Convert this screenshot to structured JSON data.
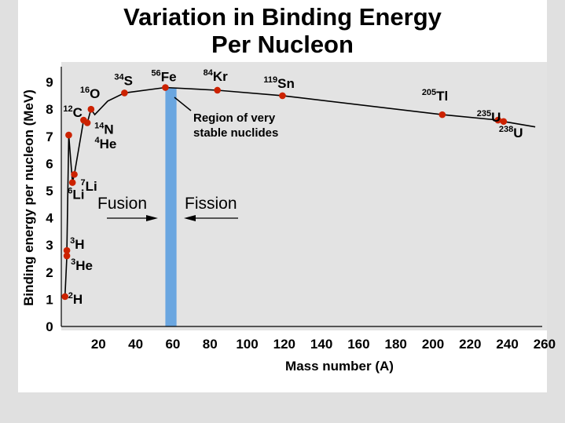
{
  "title_line1": "Variation in Binding Energy",
  "title_line2": "Per Nucleon",
  "chart_data": {
    "type": "line",
    "title": "Variation in Binding Energy Per Nucleon",
    "xlabel": "Mass number (A)",
    "ylabel": "Binding energy per nucleon (MeV)",
    "xlim": [
      0,
      260
    ],
    "ylim": [
      0,
      10
    ],
    "x_ticks": [
      "20",
      "40",
      "60",
      "80",
      "100",
      "120",
      "140",
      "160",
      "180",
      "200",
      "220",
      "240",
      "260"
    ],
    "y_ticks": [
      "0",
      "1",
      "2",
      "3",
      "4",
      "5",
      "6",
      "7",
      "8",
      "9"
    ],
    "grid": false,
    "curve": [
      {
        "x": 2,
        "y": 1.1
      },
      {
        "x": 3,
        "y": 2.6
      },
      {
        "x": 3,
        "y": 2.8
      },
      {
        "x": 4,
        "y": 7.05
      },
      {
        "x": 6,
        "y": 5.3
      },
      {
        "x": 7,
        "y": 5.6
      },
      {
        "x": 9,
        "y": 6.4
      },
      {
        "x": 12,
        "y": 7.6
      },
      {
        "x": 14,
        "y": 7.5
      },
      {
        "x": 16,
        "y": 8.0
      },
      {
        "x": 18,
        "y": 7.8
      },
      {
        "x": 25,
        "y": 8.3
      },
      {
        "x": 34,
        "y": 8.6
      },
      {
        "x": 56,
        "y": 8.8
      },
      {
        "x": 84,
        "y": 8.7
      },
      {
        "x": 119,
        "y": 8.5
      },
      {
        "x": 205,
        "y": 7.8
      },
      {
        "x": 235,
        "y": 7.6
      },
      {
        "x": 238,
        "y": 7.55
      },
      {
        "x": 255,
        "y": 7.35
      }
    ],
    "points": [
      {
        "x": 2,
        "y": 1.1,
        "sup": "2",
        "sym": "H"
      },
      {
        "x": 3,
        "y": 2.8,
        "sup": "3",
        "sym": "H"
      },
      {
        "x": 3,
        "y": 2.6,
        "sup": "3",
        "sym": "He"
      },
      {
        "x": 4,
        "y": 7.05,
        "sup": "4",
        "sym": "He"
      },
      {
        "x": 6,
        "y": 5.3,
        "sup": "6",
        "sym": "Li"
      },
      {
        "x": 7,
        "y": 5.6,
        "sup": "7",
        "sym": "Li"
      },
      {
        "x": 12,
        "y": 7.6,
        "sup": "12",
        "sym": "C"
      },
      {
        "x": 14,
        "y": 7.5,
        "sup": "14",
        "sym": "N"
      },
      {
        "x": 16,
        "y": 8.0,
        "sup": "16",
        "sym": "O"
      },
      {
        "x": 34,
        "y": 8.6,
        "sup": "34",
        "sym": "S"
      },
      {
        "x": 56,
        "y": 8.8,
        "sup": "56",
        "sym": "Fe"
      },
      {
        "x": 84,
        "y": 8.7,
        "sup": "84",
        "sym": "Kr"
      },
      {
        "x": 119,
        "y": 8.5,
        "sup": "119",
        "sym": "Sn"
      },
      {
        "x": 205,
        "y": 7.8,
        "sup": "205",
        "sym": "Tl"
      },
      {
        "x": 235,
        "y": 7.6,
        "sup": "235",
        "sym": "U"
      },
      {
        "x": 238,
        "y": 7.55,
        "sup": "238",
        "sym": "U"
      }
    ],
    "stable_band": [
      56,
      62
    ],
    "annotations": {
      "region_line1": "Region of very",
      "region_line2": "stable nuclides",
      "fusion": "Fusion",
      "fission": "Fission"
    },
    "colors": {
      "plot_bg": "#e3e3e3",
      "curve": "#000000",
      "points": "#cc2200",
      "band": "#6aa6e0"
    }
  }
}
